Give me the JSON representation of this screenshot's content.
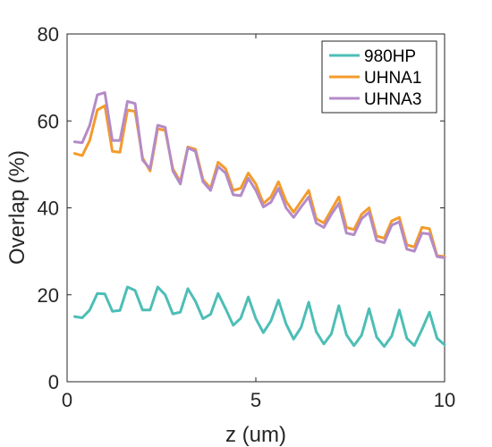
{
  "chart_data": {
    "type": "line",
    "title": "",
    "xlabel": "z (um)",
    "ylabel": "Overlap (%)",
    "xlim": [
      0,
      10
    ],
    "ylim": [
      0,
      80
    ],
    "xticks": [
      0,
      5,
      10
    ],
    "yticks": [
      0,
      20,
      40,
      60,
      80
    ],
    "grid": false,
    "legend_position": "top-right",
    "series": [
      {
        "name": "980HP",
        "color": "#4dbeb6",
        "x": [
          0.2,
          0.4,
          0.6,
          0.8,
          1.0,
          1.2,
          1.4,
          1.6,
          1.8,
          2.0,
          2.2,
          2.4,
          2.6,
          2.8,
          3.0,
          3.2,
          3.4,
          3.6,
          3.8,
          4.0,
          4.2,
          4.4,
          4.6,
          4.8,
          5.0,
          5.2,
          5.4,
          5.6,
          5.8,
          6.0,
          6.2,
          6.4,
          6.6,
          6.8,
          7.0,
          7.2,
          7.4,
          7.6,
          7.8,
          8.0,
          8.2,
          8.4,
          8.6,
          8.8,
          9.0,
          9.2,
          9.4,
          9.6,
          9.8,
          10.0
        ],
        "values": [
          15.0,
          14.7,
          16.5,
          20.3,
          20.2,
          16.2,
          16.4,
          21.8,
          21.0,
          16.5,
          16.5,
          21.8,
          20.0,
          15.6,
          16.0,
          21.4,
          18.5,
          14.5,
          15.5,
          20.3,
          16.8,
          13.0,
          14.6,
          19.5,
          14.5,
          11.3,
          14.0,
          18.8,
          13.3,
          9.8,
          12.5,
          18.3,
          11.5,
          8.7,
          11.0,
          17.5,
          10.8,
          8.3,
          10.7,
          16.8,
          10.3,
          8.1,
          10.5,
          16.5,
          10.0,
          8.3,
          12.0,
          16.0,
          10.0,
          8.5
        ]
      },
      {
        "name": "UHNA1",
        "color": "#f39b2c",
        "x": [
          0.2,
          0.4,
          0.6,
          0.8,
          1.0,
          1.2,
          1.4,
          1.6,
          1.8,
          2.0,
          2.2,
          2.4,
          2.6,
          2.8,
          3.0,
          3.2,
          3.4,
          3.6,
          3.8,
          4.0,
          4.2,
          4.4,
          4.6,
          4.8,
          5.0,
          5.2,
          5.4,
          5.6,
          5.8,
          6.0,
          6.2,
          6.4,
          6.6,
          6.8,
          7.0,
          7.2,
          7.4,
          7.6,
          7.8,
          8.0,
          8.2,
          8.4,
          8.6,
          8.8,
          9.0,
          9.2,
          9.4,
          9.6,
          9.8,
          10.0
        ],
        "values": [
          52.5,
          52.0,
          55.5,
          62.5,
          63.5,
          53.0,
          52.8,
          62.5,
          62.2,
          51.5,
          48.5,
          58.2,
          57.8,
          49.0,
          46.0,
          54.0,
          53.5,
          46.5,
          44.5,
          50.5,
          49.0,
          44.0,
          44.5,
          48.0,
          45.5,
          41.0,
          42.5,
          46.0,
          41.5,
          39.0,
          41.5,
          44.0,
          37.5,
          36.5,
          39.5,
          42.5,
          35.5,
          35.0,
          38.5,
          40.0,
          33.5,
          33.0,
          37.0,
          37.8,
          31.5,
          31.0,
          35.5,
          35.2,
          29.0,
          28.8
        ]
      },
      {
        "name": "UHNA3",
        "color": "#b48bc8",
        "x": [
          0.2,
          0.4,
          0.6,
          0.8,
          1.0,
          1.2,
          1.4,
          1.6,
          1.8,
          2.0,
          2.2,
          2.4,
          2.6,
          2.8,
          3.0,
          3.2,
          3.4,
          3.6,
          3.8,
          4.0,
          4.2,
          4.4,
          4.6,
          4.8,
          5.0,
          5.2,
          5.4,
          5.6,
          5.8,
          6.0,
          6.2,
          6.4,
          6.6,
          6.8,
          7.0,
          7.2,
          7.4,
          7.6,
          7.8,
          8.0,
          8.2,
          8.4,
          8.6,
          8.8,
          9.0,
          9.2,
          9.4,
          9.6,
          9.8,
          10.0
        ],
        "values": [
          55.2,
          55.0,
          59.0,
          66.0,
          66.5,
          55.5,
          55.5,
          64.5,
          64.0,
          51.0,
          49.0,
          59.0,
          58.5,
          48.5,
          45.5,
          53.8,
          53.0,
          46.0,
          44.0,
          49.5,
          48.0,
          43.0,
          42.8,
          46.8,
          44.0,
          40.2,
          41.3,
          44.5,
          40.0,
          37.8,
          40.2,
          42.5,
          36.5,
          35.5,
          38.5,
          41.0,
          34.2,
          33.8,
          37.5,
          39.0,
          32.5,
          32.0,
          36.0,
          36.8,
          30.5,
          30.0,
          34.2,
          34.0,
          28.8,
          28.5
        ]
      }
    ]
  }
}
